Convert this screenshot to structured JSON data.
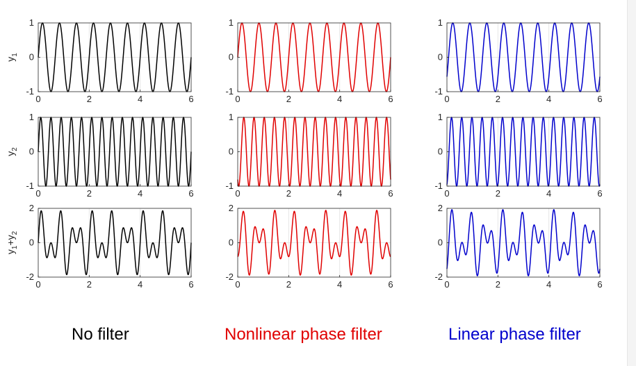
{
  "chart_data": {
    "type": "line",
    "row_labels": [
      {
        "main": "y",
        "sub": "1",
        "sup": "",
        "sub2": ""
      },
      {
        "main": "y",
        "sub": "2",
        "sup": "",
        "sub2": ""
      },
      {
        "main": "y",
        "sub": "1",
        "sup": "+y",
        "sub2": "2"
      }
    ],
    "columns": [
      {
        "caption": "No filter",
        "color": "#000000",
        "phases": [
          0,
          0
        ]
      },
      {
        "caption": "Nonlinear phase filter",
        "color": "#e00000",
        "phases": [
          0,
          -2.2
        ]
      },
      {
        "caption": "Linear phase filter",
        "color": "#0000cc",
        "phases": [
          -0.6,
          -1.28
        ]
      }
    ],
    "signals": {
      "y1": {
        "frequency": 1.5,
        "amplitude": 1
      },
      "y2": {
        "frequency": 2.5,
        "amplitude": 1
      },
      "sum": "y1 + y2"
    },
    "x_range": [
      0,
      6
    ],
    "x_ticks": [
      "0",
      "2",
      "4",
      "6"
    ],
    "row_ylims": [
      [
        -1,
        1
      ],
      [
        -1,
        1
      ],
      [
        -2,
        2
      ]
    ],
    "row_yticks": [
      [
        "-1",
        "0",
        "1"
      ],
      [
        "-1",
        "0",
        "1"
      ],
      [
        "-2",
        "0",
        "2"
      ]
    ],
    "grid": true
  }
}
